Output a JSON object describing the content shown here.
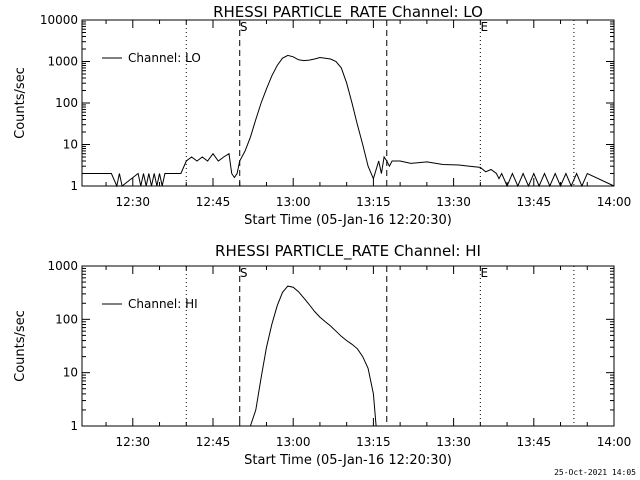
{
  "stamp": "25-Oct-2021 14:05",
  "chart_data": [
    {
      "type": "line",
      "title": "RHESSI PARTICLE_RATE Channel: LO",
      "xlabel": "Start Time (05-Jan-16 12:20:30)",
      "ylabel": "Counts/sec",
      "yscale": "log",
      "ylim": [
        1,
        10000
      ],
      "xlim": [
        "12:20:30",
        "14:00:00"
      ],
      "x_ticks": [
        "12:30",
        "12:45",
        "13:00",
        "13:15",
        "13:30",
        "13:45",
        "14:00"
      ],
      "y_ticks": [
        "1",
        "10",
        "100",
        "1000",
        "10000"
      ],
      "legend": {
        "position": "top-left",
        "label": "Channel: LO"
      },
      "markers": [
        {
          "label": "S",
          "time": "12:50:00",
          "style": "dashed"
        },
        {
          "label": "",
          "time": "13:17:30",
          "style": "dashed"
        },
        {
          "label": "",
          "time": "12:40:00",
          "style": "dotted"
        },
        {
          "label": "E",
          "time": "13:35:00",
          "style": "dotted"
        },
        {
          "label": "",
          "time": "13:52:30",
          "style": "dotted"
        }
      ],
      "series": [
        {
          "name": "Channel: LO",
          "x": [
            "12:20:30",
            "12:22:00",
            "12:26:00",
            "12:27:00",
            "12:27:30",
            "12:28:00",
            "12:31:00",
            "12:31:30",
            "12:32:00",
            "12:32:30",
            "12:33:00",
            "12:33:30",
            "12:34:00",
            "12:34:30",
            "12:35:00",
            "12:35:30",
            "12:36:00",
            "12:39:00",
            "12:40:00",
            "12:41:00",
            "12:42:00",
            "12:43:00",
            "12:44:00",
            "12:45:00",
            "12:46:00",
            "12:47:00",
            "12:48:00",
            "12:48:30",
            "12:49:00",
            "12:49:30",
            "12:50:00",
            "12:51:00",
            "12:52:00",
            "12:53:00",
            "12:54:00",
            "12:55:00",
            "12:56:00",
            "12:57:00",
            "12:58:00",
            "12:59:00",
            "13:00:00",
            "13:01:00",
            "13:02:00",
            "13:03:00",
            "13:04:00",
            "13:05:00",
            "13:06:00",
            "13:07:00",
            "13:08:00",
            "13:09:00",
            "13:10:00",
            "13:11:00",
            "13:12:00",
            "13:13:00",
            "13:14:00",
            "13:15:00",
            "13:16:00",
            "13:16:30",
            "13:17:00",
            "13:17:30",
            "13:18:00",
            "13:18:30",
            "13:19:00",
            "13:20:00",
            "13:22:00",
            "13:25:00",
            "13:28:00",
            "13:31:00",
            "13:33:00",
            "13:35:00",
            "13:36:00",
            "13:37:00",
            "13:38:00",
            "13:38:30",
            "13:39:00",
            "13:40:00",
            "13:41:00",
            "13:42:00",
            "13:43:00",
            "13:44:00",
            "13:45:00",
            "13:46:00",
            "13:47:00",
            "13:48:00",
            "13:49:00",
            "13:50:00",
            "13:51:00",
            "13:52:00",
            "13:53:00",
            "13:54:00",
            "13:55:00",
            "14:00:00"
          ],
          "values": [
            2,
            2,
            2,
            1,
            2,
            1,
            2,
            1,
            2,
            1,
            2,
            1,
            2,
            1,
            2,
            1,
            2,
            2,
            4,
            5,
            4,
            5,
            4,
            6,
            4,
            5,
            6,
            2,
            1.6,
            2,
            4,
            7,
            15,
            40,
            100,
            220,
            450,
            800,
            1200,
            1400,
            1300,
            1100,
            1050,
            1080,
            1150,
            1250,
            1200,
            1150,
            1000,
            700,
            300,
            100,
            30,
            10,
            3,
            1.5,
            4,
            2,
            5,
            4,
            3,
            4,
            4,
            4,
            3.5,
            3.8,
            3.3,
            3.2,
            3,
            2.8,
            2.2,
            2.5,
            2,
            1.5,
            2,
            1,
            2,
            1,
            2,
            1,
            2,
            1,
            2,
            1,
            2,
            1,
            2,
            1,
            2,
            1,
            2,
            1
          ]
        }
      ]
    },
    {
      "type": "line",
      "title": "RHESSI PARTICLE_RATE Channel: HI",
      "xlabel": "Start Time (05-Jan-16 12:20:30)",
      "ylabel": "Counts/sec",
      "yscale": "log",
      "ylim": [
        1,
        1000
      ],
      "xlim": [
        "12:20:30",
        "14:00:00"
      ],
      "x_ticks": [
        "12:30",
        "12:45",
        "13:00",
        "13:15",
        "13:30",
        "13:45",
        "14:00"
      ],
      "y_ticks": [
        "1",
        "10",
        "100",
        "1000"
      ],
      "legend": {
        "position": "top-left",
        "label": "Channel: HI"
      },
      "markers": [
        {
          "label": "S",
          "time": "12:50:00",
          "style": "dashed"
        },
        {
          "label": "",
          "time": "13:17:30",
          "style": "dashed"
        },
        {
          "label": "",
          "time": "12:40:00",
          "style": "dotted"
        },
        {
          "label": "E",
          "time": "13:35:00",
          "style": "dotted"
        },
        {
          "label": "",
          "time": "13:52:30",
          "style": "dotted"
        }
      ],
      "series": [
        {
          "name": "Channel: HI",
          "x": [
            "12:52:00",
            "12:53:00",
            "12:54:00",
            "12:55:00",
            "12:56:00",
            "12:57:00",
            "12:58:00",
            "12:59:00",
            "13:00:00",
            "13:01:00",
            "13:02:00",
            "13:03:00",
            "13:04:00",
            "13:05:00",
            "13:06:00",
            "13:07:00",
            "13:08:00",
            "13:09:00",
            "13:10:00",
            "13:11:00",
            "13:12:00",
            "13:13:00",
            "13:14:00",
            "13:15:00",
            "13:15:30"
          ],
          "values": [
            1,
            2,
            8,
            30,
            80,
            180,
            320,
            420,
            400,
            330,
            250,
            190,
            140,
            110,
            90,
            75,
            60,
            48,
            40,
            34,
            28,
            20,
            12,
            4,
            1
          ]
        }
      ]
    }
  ]
}
